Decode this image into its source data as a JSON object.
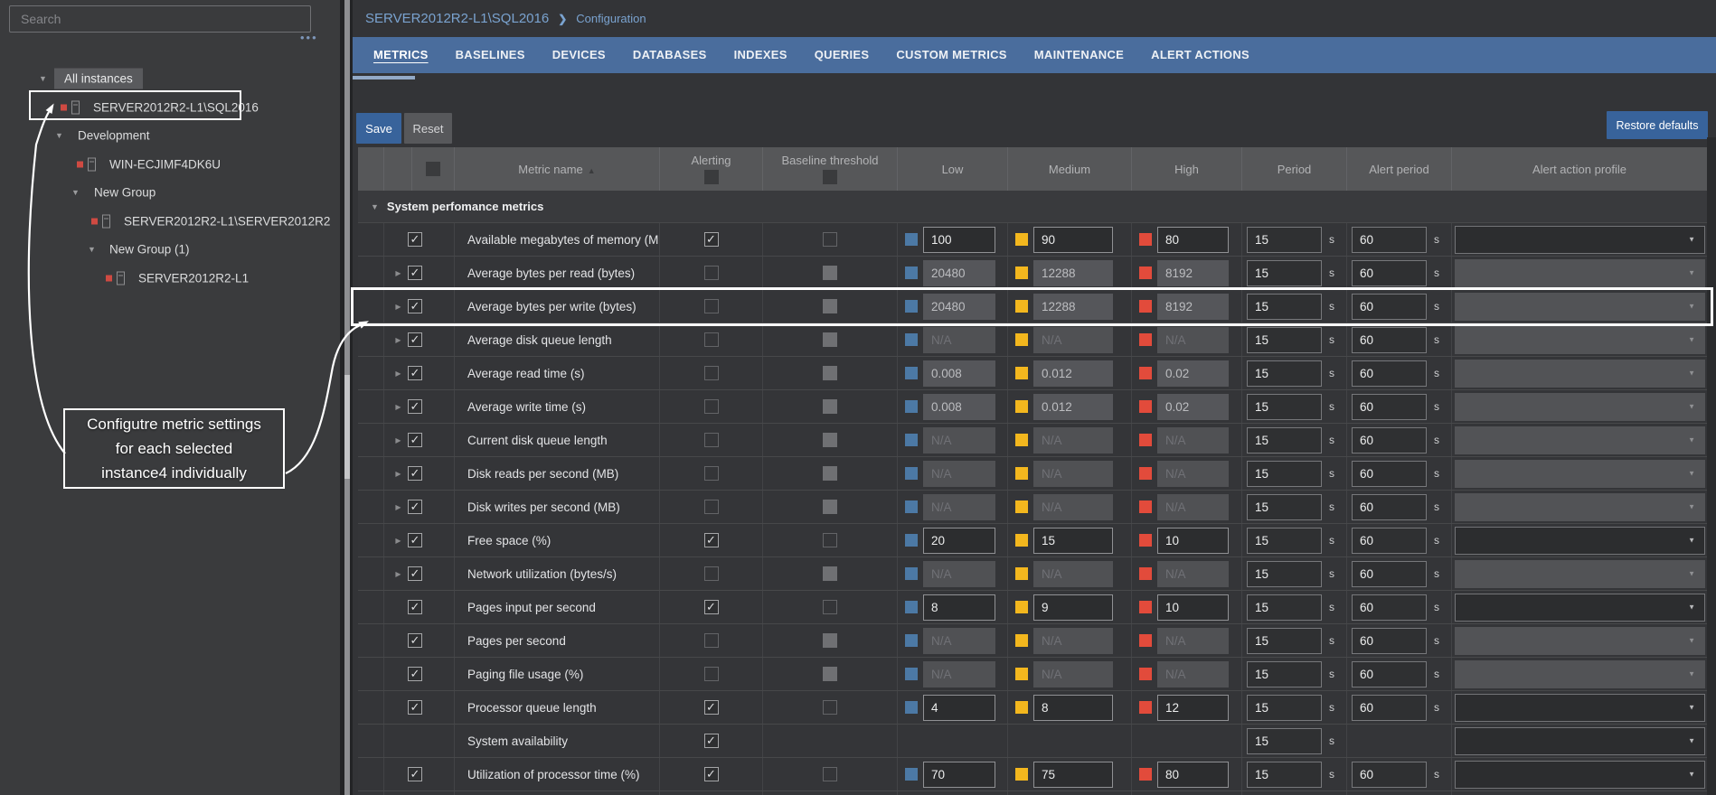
{
  "colors": {
    "accent_blue": "#38639b",
    "tab_bar_blue": "#4a6d9d",
    "breadcrumb_blue": "#7aa3d0",
    "threshold_low_blue": "#4c79a5",
    "threshold_medium_yellow": "#f3b71e",
    "threshold_high_red": "#e24b3b",
    "instance_status_red": "#cf4a42"
  },
  "sidebar": {
    "search_placeholder": "Search",
    "more_options": "•••",
    "tree": [
      {
        "label": "All instances",
        "type": "group",
        "selected": true
      },
      {
        "label": "SERVER2012R2-L1\\SQL2016",
        "type": "instance",
        "highlighted": true
      },
      {
        "label": "Development",
        "type": "group"
      },
      {
        "label": "WIN-ECJIMF4DK6U",
        "type": "instance"
      },
      {
        "label": "New Group",
        "type": "group"
      },
      {
        "label": "SERVER2012R2-L1\\SERVER2012R2",
        "type": "instance"
      },
      {
        "label": "New Group (1)",
        "type": "group"
      },
      {
        "label": "SERVER2012R2-L1",
        "type": "instance"
      }
    ],
    "annotation": {
      "lines": [
        "Configutre metric settings",
        "for each selected",
        "instance4 individually"
      ]
    }
  },
  "breadcrumb": {
    "instance": "SERVER2012R2-L1\\SQL2016",
    "separator": "❯",
    "page": "Configuration"
  },
  "tabs": {
    "active": "METRICS",
    "items": [
      "METRICS",
      "BASELINES",
      "DEVICES",
      "DATABASES",
      "INDEXES",
      "QUERIES",
      "CUSTOM METRICS",
      "MAINTENANCE",
      "ALERT ACTIONS"
    ]
  },
  "toolbar": {
    "save": "Save",
    "reset": "Reset",
    "restore": "Restore defaults"
  },
  "units": {
    "seconds": "s"
  },
  "table": {
    "headers": {
      "metric": "Metric name",
      "alerting": "Alerting",
      "baseline": "Baseline threshold",
      "low": "Low",
      "medium": "Medium",
      "high": "High",
      "period": "Period",
      "alert_period": "Alert period",
      "profile": "Alert action profile"
    },
    "group": "System perfomance metrics",
    "rows": [
      {
        "name": "Available megabytes of memory (MB)",
        "expand": false,
        "checked": true,
        "alerting": true,
        "baseline": "unchecked",
        "threshold_state": "enabled",
        "low": "100",
        "medium": "90",
        "high": "80",
        "period": "15",
        "alert_period": "60",
        "profile": "enabled",
        "highlight": false
      },
      {
        "name": "Average bytes per read (bytes)",
        "expand": true,
        "checked": true,
        "alerting": false,
        "baseline": "disabled",
        "threshold_state": "disabled",
        "low": "20480",
        "medium": "12288",
        "high": "8192",
        "period": "15",
        "alert_period": "60",
        "profile": "disabled",
        "highlight": false
      },
      {
        "name": "Average bytes per write (bytes)",
        "expand": true,
        "checked": true,
        "alerting": false,
        "baseline": "disabled",
        "threshold_state": "disabled",
        "low": "20480",
        "medium": "12288",
        "high": "8192",
        "period": "15",
        "alert_period": "60",
        "profile": "disabled",
        "highlight": true
      },
      {
        "name": "Average disk queue length",
        "expand": true,
        "checked": true,
        "alerting": false,
        "baseline": "disabled",
        "threshold_state": "na",
        "low": "N/A",
        "medium": "N/A",
        "high": "N/A",
        "period": "15",
        "alert_period": "60",
        "profile": "disabled",
        "highlight": false
      },
      {
        "name": "Average read time (s)",
        "expand": true,
        "checked": true,
        "alerting": false,
        "baseline": "disabled",
        "threshold_state": "disabled",
        "low": "0.008",
        "medium": "0.012",
        "high": "0.02",
        "period": "15",
        "alert_period": "60",
        "profile": "disabled",
        "highlight": false
      },
      {
        "name": "Average write time (s)",
        "expand": true,
        "checked": true,
        "alerting": false,
        "baseline": "disabled",
        "threshold_state": "disabled",
        "low": "0.008",
        "medium": "0.012",
        "high": "0.02",
        "period": "15",
        "alert_period": "60",
        "profile": "disabled",
        "highlight": false
      },
      {
        "name": "Current disk queue length",
        "expand": true,
        "checked": true,
        "alerting": false,
        "baseline": "disabled",
        "threshold_state": "na",
        "low": "N/A",
        "medium": "N/A",
        "high": "N/A",
        "period": "15",
        "alert_period": "60",
        "profile": "disabled",
        "highlight": false
      },
      {
        "name": "Disk reads per second (MB)",
        "expand": true,
        "checked": true,
        "alerting": false,
        "baseline": "disabled",
        "threshold_state": "na",
        "low": "N/A",
        "medium": "N/A",
        "high": "N/A",
        "period": "15",
        "alert_period": "60",
        "profile": "disabled",
        "highlight": false
      },
      {
        "name": "Disk writes per second (MB)",
        "expand": true,
        "checked": true,
        "alerting": false,
        "baseline": "disabled",
        "threshold_state": "na",
        "low": "N/A",
        "medium": "N/A",
        "high": "N/A",
        "period": "15",
        "alert_period": "60",
        "profile": "disabled",
        "highlight": false
      },
      {
        "name": "Free space (%)",
        "expand": true,
        "checked": true,
        "alerting": true,
        "baseline": "unchecked",
        "threshold_state": "enabled",
        "low": "20",
        "medium": "15",
        "high": "10",
        "period": "15",
        "alert_period": "60",
        "profile": "enabled",
        "highlight": false
      },
      {
        "name": "Network utilization (bytes/s)",
        "expand": true,
        "checked": true,
        "alerting": false,
        "baseline": "disabled",
        "threshold_state": "na",
        "low": "N/A",
        "medium": "N/A",
        "high": "N/A",
        "period": "15",
        "alert_period": "60",
        "profile": "disabled",
        "highlight": false
      },
      {
        "name": "Pages input per second",
        "expand": false,
        "checked": true,
        "alerting": true,
        "baseline": "unchecked",
        "threshold_state": "enabled",
        "low": "8",
        "medium": "9",
        "high": "10",
        "period": "15",
        "alert_period": "60",
        "profile": "enabled",
        "highlight": false
      },
      {
        "name": "Pages per second",
        "expand": false,
        "checked": true,
        "alerting": false,
        "baseline": "disabled",
        "threshold_state": "na",
        "low": "N/A",
        "medium": "N/A",
        "high": "N/A",
        "period": "15",
        "alert_period": "60",
        "profile": "disabled",
        "highlight": false
      },
      {
        "name": "Paging file usage (%)",
        "expand": false,
        "checked": true,
        "alerting": false,
        "baseline": "disabled",
        "threshold_state": "na",
        "low": "N/A",
        "medium": "N/A",
        "high": "N/A",
        "period": "15",
        "alert_period": "60",
        "profile": "disabled",
        "highlight": false
      },
      {
        "name": "Processor queue length",
        "expand": false,
        "checked": true,
        "alerting": true,
        "baseline": "unchecked",
        "threshold_state": "enabled",
        "low": "4",
        "medium": "8",
        "high": "12",
        "period": "15",
        "alert_period": "60",
        "profile": "enabled",
        "highlight": false
      },
      {
        "name": "System availability",
        "expand": false,
        "checked": null,
        "alerting": true,
        "baseline": null,
        "threshold_state": null,
        "low": null,
        "medium": null,
        "high": null,
        "period": "15",
        "alert_period": null,
        "profile": "enabled",
        "highlight": false
      },
      {
        "name": "Utilization of processor time (%)",
        "expand": false,
        "checked": true,
        "alerting": true,
        "baseline": "unchecked",
        "threshold_state": "enabled",
        "low": "70",
        "medium": "75",
        "high": "80",
        "period": "15",
        "alert_period": "60",
        "profile": "enabled",
        "highlight": false
      }
    ]
  }
}
